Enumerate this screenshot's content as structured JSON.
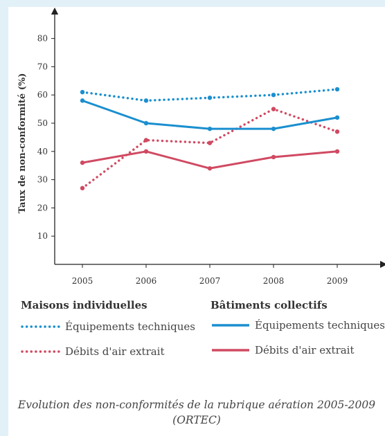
{
  "chart_data": {
    "type": "line",
    "x": [
      "2005",
      "2006",
      "2007",
      "2008",
      "2009"
    ],
    "ylabel": "Taux de non-conformité (%)",
    "yticks": [
      10,
      20,
      30,
      40,
      50,
      60,
      70,
      80
    ],
    "ylim": [
      0,
      85
    ],
    "grid": false,
    "series": [
      {
        "group": "Maisons individuelles",
        "name": "Équipements techniques",
        "color": "#1a8fcf",
        "style": "dotted",
        "values": [
          61,
          58,
          59,
          60,
          62
        ]
      },
      {
        "group": "Maisons individuelles",
        "name": "Débits d'air extrait",
        "color": "#d04a62",
        "style": "dotted",
        "values": [
          27,
          44,
          43,
          55,
          47
        ]
      },
      {
        "group": "Bâtiments collectifs",
        "name": "Équipements techniques",
        "color": "#1a8fcf",
        "style": "solid",
        "values": [
          58,
          50,
          48,
          48,
          52
        ]
      },
      {
        "group": "Bâtiments collectifs",
        "name": "Débits d'air extrait",
        "color": "#d04a62",
        "style": "solid",
        "values": [
          36,
          40,
          34,
          38,
          40
        ]
      }
    ]
  },
  "legend": {
    "group1_title": "Maisons individuelles",
    "group2_title": "Bâtiments collectifs",
    "item1": "Équipements techniques",
    "item2": "Débits d'air extrait",
    "item3": "Équipements techniques",
    "item4": "Débits d'air extrait"
  },
  "caption": {
    "line1": "Evolution des non-conformités de la rubrique aération 2005-2009",
    "line2": "(ORTEC)"
  }
}
